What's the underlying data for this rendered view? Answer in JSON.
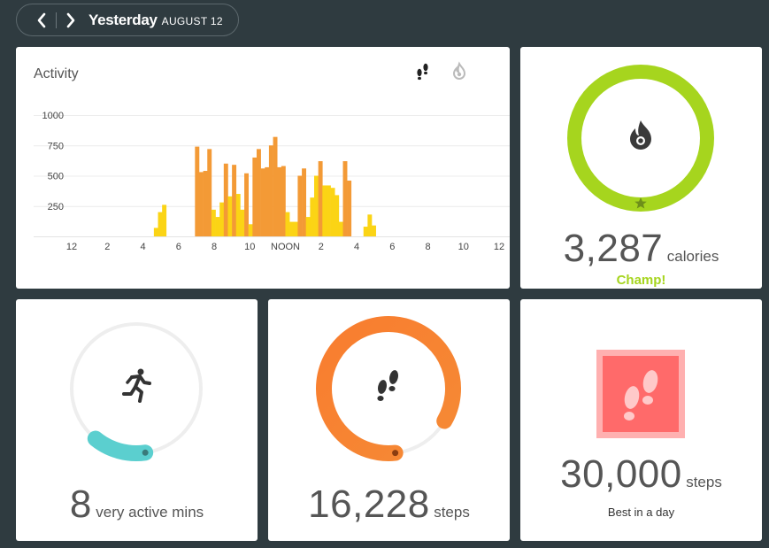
{
  "header": {
    "day": "Yesterday",
    "date": "AUGUST 12",
    "prev_icon": "chevron-left-icon",
    "next_icon": "chevron-right-icon"
  },
  "activity": {
    "title": "Activity",
    "toggle_steps_icon": "footsteps-icon",
    "toggle_calories_icon": "flame-icon"
  },
  "chart_data": {
    "type": "bar",
    "title": "Activity",
    "xlabel": "",
    "ylabel": "",
    "ylim": [
      0,
      1000
    ],
    "y_ticks": [
      "250",
      "500",
      "750",
      "1000"
    ],
    "x_ticks": [
      "12",
      "2",
      "4",
      "6",
      "8",
      "10",
      "NOON",
      "2",
      "4",
      "6",
      "8",
      "10",
      "12"
    ],
    "colors": {
      "high": "#f39a36",
      "low": "#fbd415"
    },
    "interval_minutes": 15,
    "values": [
      0,
      0,
      0,
      0,
      0,
      0,
      0,
      0,
      0,
      0,
      0,
      0,
      0,
      0,
      0,
      0,
      0,
      0,
      0,
      0,
      70,
      200,
      260,
      0,
      0,
      0,
      0,
      0,
      0,
      0,
      740,
      530,
      540,
      720,
      220,
      160,
      280,
      600,
      330,
      590,
      350,
      220,
      520,
      100,
      650,
      720,
      560,
      570,
      750,
      820,
      570,
      580,
      200,
      120,
      120,
      500,
      560,
      160,
      320,
      500,
      620,
      420,
      420,
      400,
      340,
      120,
      620,
      460,
      0,
      0,
      0,
      80,
      180,
      90,
      0,
      0,
      0,
      0,
      0,
      0,
      0,
      0,
      0,
      0,
      0,
      0,
      0,
      0,
      0,
      0,
      0,
      0,
      0,
      0,
      0,
      0,
      0,
      0,
      0,
      0,
      0,
      0,
      0,
      0
    ],
    "series_type": [
      0,
      0,
      0,
      0,
      0,
      0,
      0,
      0,
      0,
      0,
      0,
      0,
      0,
      0,
      0,
      0,
      0,
      0,
      0,
      0,
      0,
      0,
      0,
      0,
      0,
      0,
      0,
      0,
      0,
      0,
      1,
      1,
      1,
      1,
      0,
      0,
      0,
      1,
      0,
      1,
      0,
      0,
      1,
      0,
      1,
      1,
      1,
      1,
      1,
      1,
      1,
      1,
      0,
      0,
      0,
      1,
      1,
      0,
      0,
      0,
      1,
      0,
      0,
      0,
      0,
      0,
      1,
      1,
      0,
      0,
      0,
      0,
      0,
      0,
      0,
      0,
      0,
      0,
      0,
      0,
      0,
      0,
      0,
      0,
      0,
      0,
      0,
      0,
      0,
      0,
      0,
      0,
      0,
      0,
      0,
      0,
      0,
      0,
      0,
      0,
      0,
      0,
      0,
      0
    ]
  },
  "calories": {
    "value": "3,287",
    "unit": "calories",
    "badge": "Champ!",
    "goal_progress": 1.0,
    "color": "#a6d51e",
    "icon": "flame-icon",
    "goal_marker_icon": "star-icon"
  },
  "active": {
    "value": "8",
    "unit": "very active mins",
    "goal_progress": 0.27,
    "color": "#5bcfcf",
    "icon": "running-person-icon"
  },
  "steps": {
    "value": "16,228",
    "unit": "steps",
    "goal_progress": 0.85,
    "color": "#f47a2c",
    "icon": "footsteps-icon"
  },
  "best": {
    "value": "30,000",
    "unit": "steps",
    "label": "Best in a day",
    "badge_color": "#ff6a6a",
    "icon": "footsteps-badge-icon"
  }
}
